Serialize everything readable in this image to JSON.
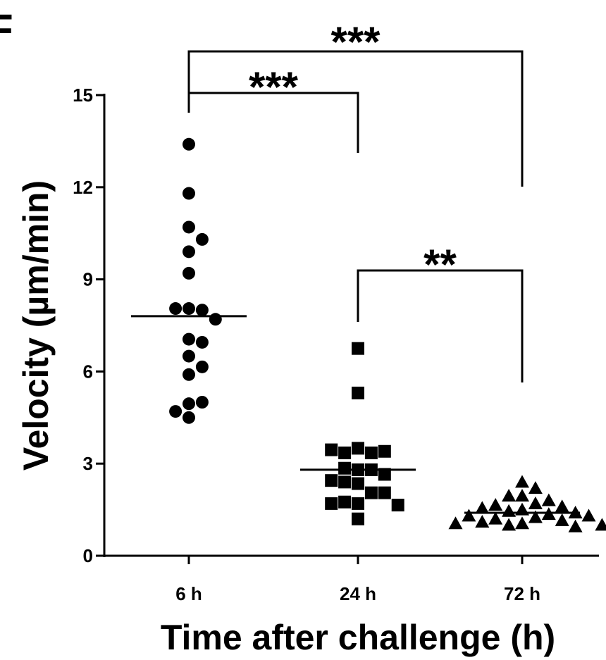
{
  "panel_label": "F",
  "chart_data": {
    "type": "scatter",
    "title": "",
    "xlabel": "Time after challenge (h)",
    "ylabel": "Velocity (µm/min)",
    "categories": [
      "6 h",
      "24 h",
      "72 h"
    ],
    "ylim": [
      0,
      15
    ],
    "yticks": [
      0,
      3,
      6,
      9,
      12,
      15
    ],
    "grid": false,
    "series": [
      {
        "category": "6 h",
        "marker": "circle",
        "values": [
          13.4,
          11.8,
          10.7,
          10.3,
          9.9,
          9.2,
          8.05,
          8.0,
          8.05,
          7.7,
          7.05,
          6.95,
          6.5,
          6.15,
          5.9,
          4.95,
          5.0,
          4.7,
          4.5
        ],
        "mean": 7.8
      },
      {
        "category": "24 h",
        "marker": "square",
        "values": [
          6.75,
          5.3,
          3.5,
          3.35,
          3.35,
          3.4,
          3.45,
          2.8,
          2.8,
          2.85,
          2.65,
          2.45,
          2.4,
          2.35,
          2.05,
          2.05,
          1.7,
          1.75,
          1.7,
          1.65,
          1.2
        ],
        "mean": 2.8
      },
      {
        "category": "72 h",
        "marker": "triangle",
        "values": [
          2.4,
          2.2,
          1.95,
          1.95,
          1.8,
          1.7,
          1.65,
          1.6,
          1.55,
          1.5,
          1.45,
          1.4,
          1.35,
          1.3,
          1.3,
          1.25,
          1.2,
          1.15,
          1.1,
          1.05,
          1.05,
          1.0,
          1.0,
          0.95
        ],
        "mean": 1.4
      }
    ],
    "significance": [
      {
        "from": "6 h",
        "to": "72 h",
        "label": "***"
      },
      {
        "from": "6 h",
        "to": "24 h",
        "label": "***"
      },
      {
        "from": "24 h",
        "to": "72 h",
        "label": "**"
      }
    ]
  }
}
